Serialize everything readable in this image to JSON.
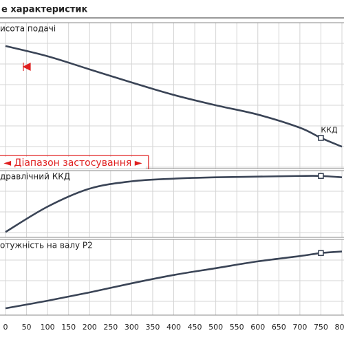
{
  "chart_data": {
    "type": "line",
    "title": "е характеристик",
    "x": [
      0,
      100,
      200,
      300,
      400,
      500,
      600,
      700,
      750,
      800
    ],
    "xlim": [
      0,
      800
    ],
    "xticks": [
      0,
      50,
      100,
      150,
      200,
      250,
      300,
      350,
      400,
      450,
      500,
      550,
      600,
      650,
      700,
      750,
      800
    ],
    "grid": true,
    "marker_label": "ККД",
    "range_label": "◄ Діапазон застосування ►",
    "range_end": 340,
    "panels": [
      {
        "label": "исота подачі",
        "ylim": [
          0,
          100
        ],
        "color": "#3a4456",
        "values": [
          84,
          77,
          68,
          59,
          50.5,
          43.4,
          37,
          28,
          21,
          15
        ]
      },
      {
        "label": "дравлічний ККД",
        "ylim": [
          0,
          100
        ],
        "color": "#3a4456",
        "values": [
          8,
          46,
          73,
          84,
          88,
          90,
          91,
          92,
          92,
          90
        ]
      },
      {
        "label": "отужність на валу  P2",
        "ylim": [
          0,
          100
        ],
        "color": "#3a4456",
        "values": [
          9,
          19,
          30,
          42,
          53,
          62,
          71,
          78,
          82,
          84
        ]
      }
    ]
  }
}
